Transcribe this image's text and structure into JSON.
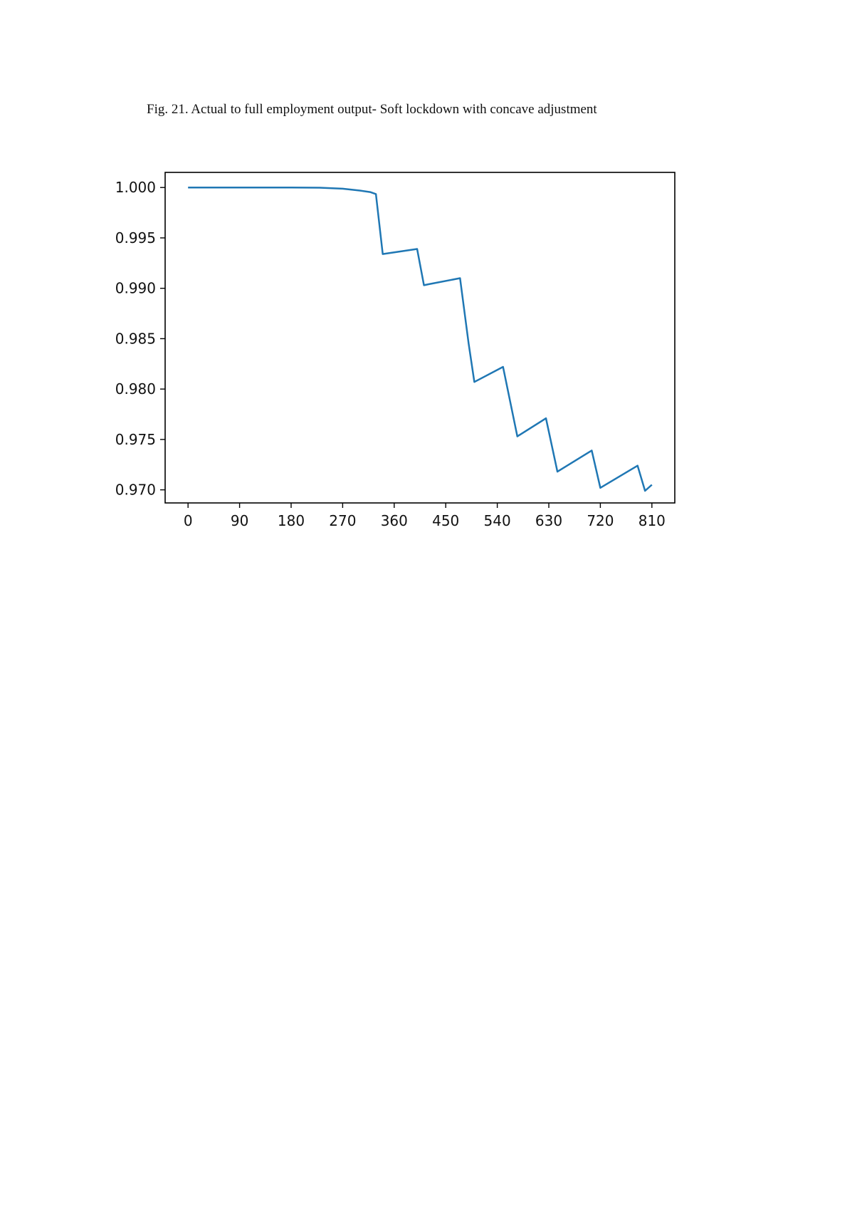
{
  "figure": {
    "caption": "Fig. 21. Actual to full employment output- Soft lockdown with concave adjustment"
  },
  "chart_data": {
    "type": "line",
    "title": "",
    "xlabel": "",
    "ylabel": "",
    "xlim": [
      -40,
      850
    ],
    "ylim": [
      0.9687,
      1.0015
    ],
    "x_ticks": [
      0,
      90,
      180,
      270,
      360,
      450,
      540,
      630,
      720,
      810
    ],
    "x_tick_labels": [
      "0",
      "90",
      "180",
      "270",
      "360",
      "450",
      "540",
      "630",
      "720",
      "810"
    ],
    "y_ticks": [
      1.0,
      0.995,
      0.99,
      0.985,
      0.98,
      0.975,
      0.97
    ],
    "y_tick_labels": [
      "1.000",
      "0.995",
      "0.990",
      "0.985",
      "0.980",
      "0.975",
      "0.970"
    ],
    "grid": false,
    "colors": {
      "line": "#1f77b4",
      "axes": "#000000"
    },
    "series": [
      {
        "x": [
          0,
          90,
          180,
          230,
          270,
          300,
          318,
          328,
          340,
          400,
          412,
          420,
          475,
          490,
          500,
          550,
          575,
          625,
          645,
          705,
          720,
          785,
          798,
          810
        ],
        "y": [
          1.0,
          1.0,
          1.0,
          0.99998,
          0.99988,
          0.9997,
          0.99955,
          0.99935,
          0.9934,
          0.9939,
          0.9903,
          0.9904,
          0.991,
          0.9845,
          0.9807,
          0.9822,
          0.9753,
          0.9771,
          0.9718,
          0.9739,
          0.9702,
          0.9724,
          0.9699,
          0.9705
        ]
      }
    ]
  }
}
